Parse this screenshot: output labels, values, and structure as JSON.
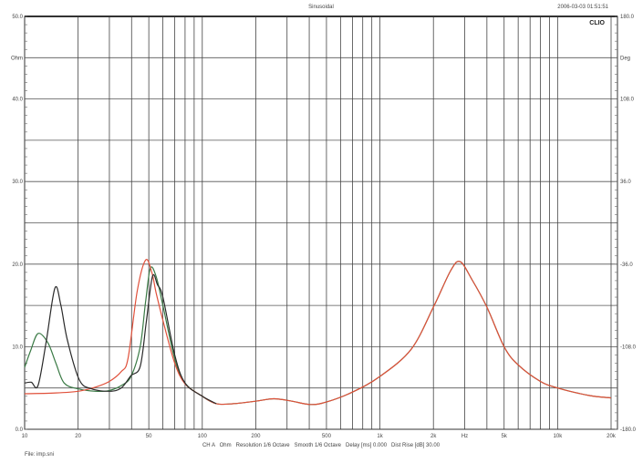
{
  "chart_data": {
    "type": "line",
    "title": "Sinusoidal",
    "timestamp": "2006-03-03 01:51:51",
    "logo": "CLIO",
    "x_scale": "log",
    "xlim": [
      10,
      20000
    ],
    "x_ticks": [
      {
        "value": 10,
        "label": "10"
      },
      {
        "value": 20,
        "label": "20"
      },
      {
        "value": 50,
        "label": "50"
      },
      {
        "value": 100,
        "label": "100"
      },
      {
        "value": 200,
        "label": "200"
      },
      {
        "value": 500,
        "label": "500"
      },
      {
        "value": 1000,
        "label": "1k"
      },
      {
        "value": 2000,
        "label": "2k"
      },
      {
        "value": 3000,
        "label": "Hz"
      },
      {
        "value": 5000,
        "label": "5k"
      },
      {
        "value": 10000,
        "label": "10k"
      },
      {
        "value": 20000,
        "label": "20k"
      }
    ],
    "x_gridlines": [
      20,
      30,
      40,
      50,
      60,
      70,
      80,
      90,
      100,
      200,
      300,
      400,
      500,
      600,
      700,
      800,
      900,
      1000,
      2000,
      3000,
      4000,
      5000,
      6000,
      7000,
      8000,
      9000,
      10000,
      20000
    ],
    "ylim": [
      0,
      50
    ],
    "ylabel": "Ohm",
    "y_ticks": [
      {
        "value": 0,
        "label": "0.0"
      },
      {
        "value": 10,
        "label": "10.0"
      },
      {
        "value": 20,
        "label": "20.0"
      },
      {
        "value": 30,
        "label": "30.0"
      },
      {
        "value": 40,
        "label": "40.0"
      },
      {
        "value": 50,
        "label": "50.0"
      }
    ],
    "y_grid_step": 5,
    "y2label": "Deg",
    "y2lim": [
      -180,
      180
    ],
    "y2_ticks": [
      {
        "value": 180,
        "label": "180.0"
      },
      {
        "value": 108,
        "label": "108.0"
      },
      {
        "value": 36,
        "label": "36.0"
      },
      {
        "value": -36,
        "label": "-36.0"
      },
      {
        "value": -108,
        "label": "-108.0"
      },
      {
        "value": -180,
        "label": "-180.0"
      }
    ],
    "grid": true,
    "info_line": "CH A   Ohm   Resolution 1/6 Octave   Smooth 1/6 Octave   Delay [ms] 0.000   Dist Rise [dB] 30.00",
    "file_label": "File: imp.sni",
    "series": [
      {
        "color": "#3a7a45",
        "x": [
          10,
          10.8,
          11.9,
          13.5,
          15,
          16.7,
          20,
          25,
          30,
          35,
          39.7,
          44.7,
          48,
          51,
          55,
          60,
          70,
          80,
          100,
          120,
          150,
          200,
          253,
          320,
          406,
          500,
          700,
          1000,
          1500,
          2000,
          2500,
          2826,
          3300,
          4000,
          5000,
          6000,
          8000,
          10000,
          15000,
          20000
        ],
        "y": [
          7.5,
          9.5,
          11.6,
          10.5,
          8.0,
          5.6,
          4.9,
          4.6,
          4.7,
          5.3,
          6.4,
          10.0,
          15.5,
          19.5,
          18.5,
          15.0,
          8.5,
          5.6,
          4.0,
          3.1,
          3.1,
          3.4,
          3.7,
          3.4,
          3.0,
          3.3,
          4.5,
          6.4,
          9.7,
          14.8,
          19.2,
          20.3,
          18.1,
          14.8,
          10.0,
          7.8,
          5.8,
          5.0,
          4.1,
          3.8
        ]
      },
      {
        "color": "#e0503a",
        "x": [
          10,
          15,
          20,
          25,
          30,
          35,
          38.2,
          43,
          48,
          52,
          55,
          61,
          70,
          80,
          100,
          120,
          150,
          200,
          253,
          320,
          406,
          500,
          700,
          1000,
          1500,
          2000,
          2500,
          2826,
          3300,
          4000,
          5000,
          6000,
          8000,
          10000,
          15000,
          20000
        ],
        "y": [
          4.3,
          4.4,
          4.6,
          5.1,
          5.8,
          7.0,
          8.6,
          16.7,
          20.5,
          19.0,
          16.5,
          12.6,
          8.0,
          5.5,
          4.0,
          3.1,
          3.1,
          3.4,
          3.7,
          3.4,
          3.0,
          3.3,
          4.5,
          6.4,
          9.7,
          14.8,
          19.2,
          20.3,
          18.1,
          14.8,
          10.0,
          7.8,
          5.8,
          5.0,
          4.1,
          3.8
        ]
      },
      {
        "color": "#2a2a2a",
        "x": [
          10,
          10.9,
          11.9,
          13.2,
          14.8,
          16,
          17.4,
          20.3,
          23.8,
          30,
          35,
          39.7,
          44.7,
          48.4,
          52.4,
          56,
          60,
          70,
          80,
          100,
          120
        ],
        "y": [
          5.6,
          5.7,
          5.3,
          10.5,
          17.1,
          15.0,
          10.8,
          6.0,
          4.9,
          4.6,
          5.0,
          6.5,
          7.6,
          13.0,
          18.5,
          17.5,
          16.0,
          9.0,
          5.6,
          4.0,
          3.1
        ]
      }
    ]
  }
}
